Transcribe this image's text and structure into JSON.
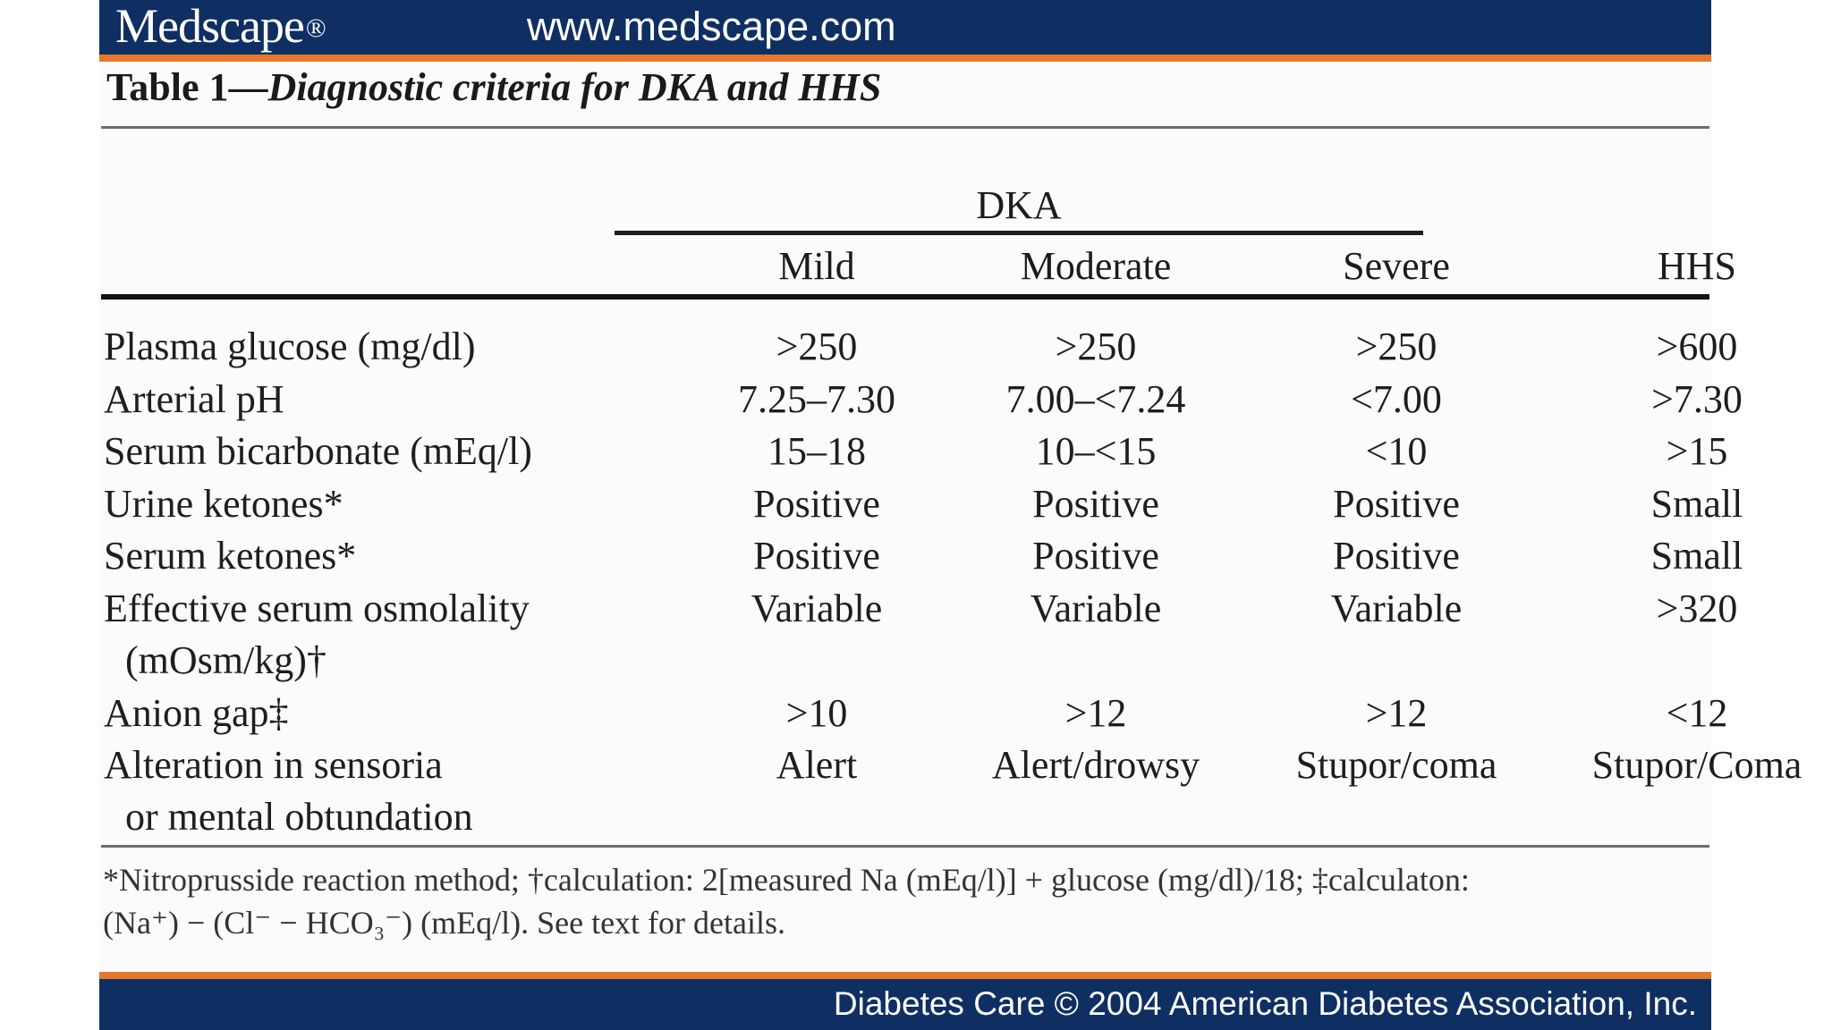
{
  "header": {
    "brand": "Medscape",
    "brand_mark": "®",
    "url": "www.medscape.com"
  },
  "table": {
    "title_number": "Table 1—",
    "title_caption": "Diagnostic criteria for DKA and HHS",
    "group_header": "DKA",
    "columns": [
      "Mild",
      "Moderate",
      "Severe",
      "HHS"
    ],
    "rows": [
      {
        "label": "Plasma glucose (mg/dl)",
        "label_cont": "",
        "values": [
          ">250",
          ">250",
          ">250",
          ">600"
        ]
      },
      {
        "label": "Arterial pH",
        "label_cont": "",
        "values": [
          "7.25–7.30",
          "7.00–<7.24",
          "<7.00",
          ">7.30"
        ]
      },
      {
        "label": "Serum bicarbonate (mEq/l)",
        "label_cont": "",
        "values": [
          "15–18",
          "10–<15",
          "<10",
          ">15"
        ]
      },
      {
        "label": "Urine ketones*",
        "label_cont": "",
        "values": [
          "Positive",
          "Positive",
          "Positive",
          "Small"
        ]
      },
      {
        "label": "Serum ketones*",
        "label_cont": "",
        "values": [
          "Positive",
          "Positive",
          "Positive",
          "Small"
        ]
      },
      {
        "label": "Effective serum osmolality",
        "label_cont": "(mOsm/kg)†",
        "values": [
          "Variable",
          "Variable",
          "Variable",
          ">320"
        ]
      },
      {
        "label": "Anion gap‡",
        "label_cont": "",
        "values": [
          ">10",
          ">12",
          ">12",
          "<12"
        ]
      },
      {
        "label": "Alteration in sensoria",
        "label_cont": "or mental obtundation",
        "values": [
          "Alert",
          "Alert/drowsy",
          "Stupor/coma",
          "Stupor/Coma"
        ]
      }
    ],
    "footnote_line1": "*Nitroprusside reaction method; †calculation: 2[measured Na (mEq/l)] + glucose (mg/dl)/18; ‡calculaton:",
    "footnote_line2": "(Na⁺) − (Cl⁻ − HCO₃⁻) (mEq/l). See text for details."
  },
  "footer": {
    "copyright": "Diabetes Care © 2004 American Diabetes Association, Inc."
  },
  "colors": {
    "bar_navy": "#0f2f63",
    "bar_orange": "#e8772b"
  }
}
